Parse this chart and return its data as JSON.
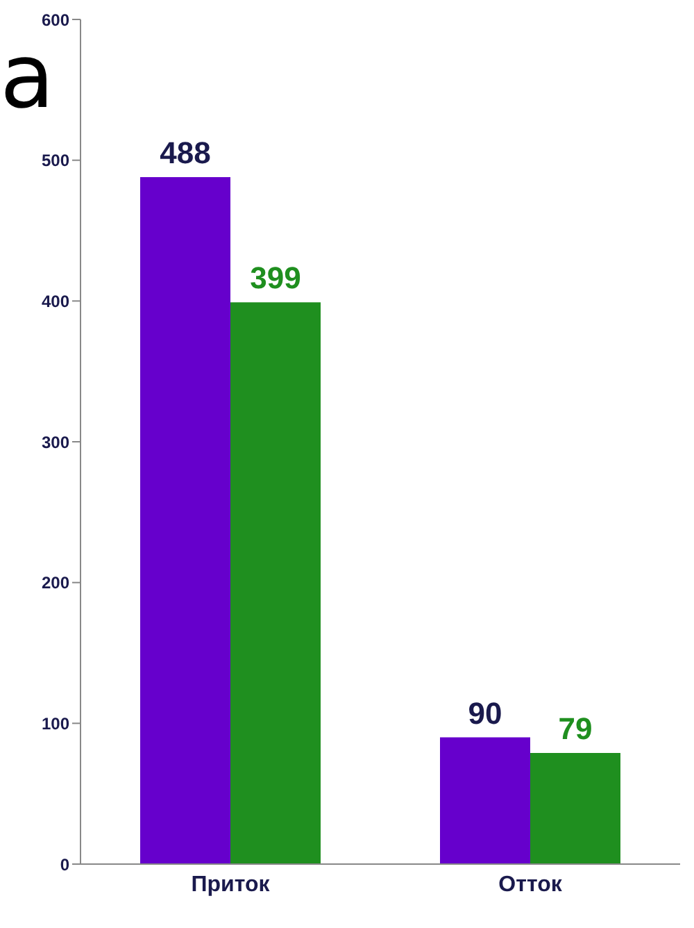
{
  "chart_data": {
    "type": "bar",
    "categories": [
      "Приток",
      "Отток"
    ],
    "series": [
      {
        "color": "#6600cc",
        "values": [
          488,
          90
        ]
      },
      {
        "color": "#1f8f1f",
        "values": [
          399,
          79
        ]
      }
    ],
    "ylim": [
      0,
      600
    ],
    "yticks": [
      0,
      100,
      200,
      300,
      400,
      500,
      600
    ],
    "data_labels": true,
    "grid": false,
    "legend": false,
    "annotations": [
      "а"
    ]
  }
}
